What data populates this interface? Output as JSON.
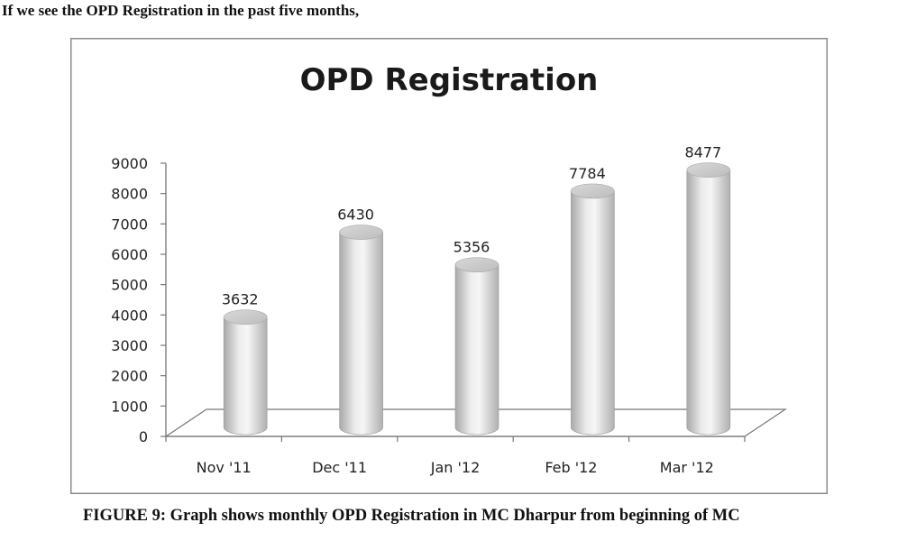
{
  "page": {
    "intro_text": "If we see the OPD Registration in the past five months,",
    "caption": "FIGURE 9: Graph shows monthly OPD Registration in MC Dharpur from beginning of MC"
  },
  "chart_data": {
    "type": "bar",
    "style": "3d-cylinder",
    "title": "OPD Registration",
    "xlabel": "",
    "ylabel": "",
    "categories": [
      "Nov '11",
      "Dec '11",
      "Jan '12",
      "Feb '12",
      "Mar '12"
    ],
    "values": [
      3632,
      6430,
      5356,
      7784,
      8477
    ],
    "data_labels": [
      "3632",
      "6430",
      "5356",
      "7784",
      "8477"
    ],
    "ylim": [
      0,
      9000
    ],
    "yticks": [
      0,
      1000,
      2000,
      3000,
      4000,
      5000,
      6000,
      7000,
      8000,
      9000
    ],
    "ytick_labels": [
      "0",
      "1000",
      "2000",
      "3000",
      "4000",
      "5000",
      "6000",
      "7000",
      "8000",
      "9000"
    ],
    "grid": false,
    "legend": "none",
    "colors": {
      "bar_fill": "#e0e0e0",
      "bar_top": "#c4c4c4",
      "axis": "#777777"
    }
  }
}
